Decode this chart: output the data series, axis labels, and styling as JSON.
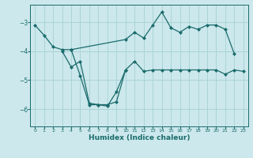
{
  "xlabel": "Humidex (Indice chaleur)",
  "bg_color": "#cce8ec",
  "grid_color": "#aad4d8",
  "line_color": "#1a6b6b",
  "xlim": [
    -0.5,
    23.5
  ],
  "ylim": [
    -6.6,
    -2.4
  ],
  "yticks": [
    -6,
    -5,
    -4,
    -3
  ],
  "xticks": [
    0,
    1,
    2,
    3,
    4,
    5,
    6,
    7,
    8,
    9,
    10,
    11,
    12,
    13,
    14,
    15,
    16,
    17,
    18,
    19,
    20,
    21,
    22,
    23
  ],
  "series": [
    {
      "x": [
        0,
        1,
        2,
        3,
        4,
        10,
        11,
        12,
        13,
        14,
        15,
        16,
        17,
        18,
        19,
        20,
        21,
        22
      ],
      "y": [
        -3.1,
        -3.45,
        -3.85,
        -3.95,
        -3.95,
        -3.6,
        -3.35,
        -3.55,
        -3.1,
        -2.65,
        -3.2,
        -3.35,
        -3.15,
        -3.25,
        -3.1,
        -3.1,
        -3.25,
        -4.1
      ]
    },
    {
      "x": [
        3,
        4,
        5,
        6,
        7,
        8,
        9,
        10,
        11,
        12,
        13,
        14,
        15,
        16,
        17,
        18,
        19,
        20,
        21,
        22,
        23
      ],
      "y": [
        -4.0,
        -4.55,
        -4.35,
        -5.8,
        -5.85,
        -5.85,
        -5.75,
        -4.65,
        -4.35,
        -4.7,
        -4.65,
        -4.65,
        -4.65,
        -4.65,
        -4.65,
        -4.65,
        -4.65,
        -4.65,
        -4.8,
        -4.65,
        -4.7
      ]
    },
    {
      "x": [
        4,
        5,
        6,
        7,
        8,
        9,
        10
      ],
      "y": [
        -3.95,
        -4.85,
        -5.85,
        -5.85,
        -5.9,
        -5.4,
        -4.65
      ]
    }
  ]
}
